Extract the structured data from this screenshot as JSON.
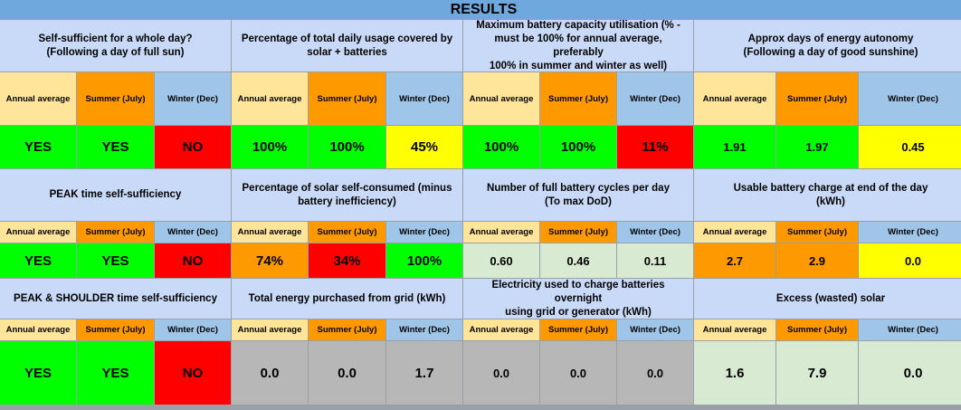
{
  "title": "RESULTS",
  "colors": {
    "header_title": "#6fa8dc",
    "question_bg": "#c9daf8",
    "annual": "#ffe599",
    "summer": "#ff9900",
    "winter": "#9fc5e8",
    "green": "#00ff00",
    "red": "#ff0000",
    "yellow": "#ffff00",
    "orange": "#ff9900",
    "grey": "#b7b7b7",
    "pale_green": "#d9ead3"
  },
  "headers": {
    "annual": "Annual average",
    "summer": "Summer (July)",
    "winter": "Winter (Dec)"
  },
  "sections": [
    {
      "question": "Self-sufficient for a whole day?\n(Following a day of full sun)",
      "values": [
        "YES",
        "YES",
        "NO"
      ],
      "colors": [
        "green",
        "green",
        "red"
      ]
    },
    {
      "question": "Percentage of total daily usage covered by\nsolar + batteries",
      "values": [
        "100%",
        "100%",
        "45%"
      ],
      "colors": [
        "green",
        "green",
        "yellow"
      ]
    },
    {
      "question": "Maximum battery capacity utilisation (% -\nmust be 100% for annual average, preferably\n100% in summer and winter as well)",
      "values": [
        "100%",
        "100%",
        "11%"
      ],
      "colors": [
        "green",
        "green",
        "red"
      ]
    },
    {
      "question": "Approx days of energy autonomy\n(Following a day of good sunshine)",
      "values": [
        "1.91",
        "1.97",
        "0.45"
      ],
      "colors": [
        "green",
        "green",
        "yellow"
      ]
    },
    {
      "question": "PEAK time self-sufficiency",
      "values": [
        "YES",
        "YES",
        "NO"
      ],
      "colors": [
        "green",
        "green",
        "red"
      ]
    },
    {
      "question": "Percentage of solar self-consumed (minus\nbattery inefficiency)",
      "values": [
        "74%",
        "34%",
        "100%"
      ],
      "colors": [
        "orange",
        "red",
        "green"
      ]
    },
    {
      "question": "Number of full battery cycles per day\n(To max DoD)",
      "values": [
        "0.60",
        "0.46",
        "0.11"
      ],
      "colors": [
        "pale_green",
        "pale_green",
        "pale_green"
      ]
    },
    {
      "question": "Usable battery charge at end of the day\n(kWh)",
      "values": [
        "2.7",
        "2.9",
        "0.0"
      ],
      "colors": [
        "orange",
        "orange",
        "yellow"
      ]
    },
    {
      "question": "PEAK & SHOULDER time self-sufficiency",
      "values": [
        "YES",
        "YES",
        "NO"
      ],
      "colors": [
        "green",
        "green",
        "red"
      ]
    },
    {
      "question": "Total energy purchased from grid (kWh)",
      "values": [
        "0.0",
        "0.0",
        "1.7"
      ],
      "colors": [
        "grey",
        "grey",
        "grey"
      ]
    },
    {
      "question": "Electricity used to charge batteries overnight\nusing grid or generator (kWh)",
      "values": [
        "0.0",
        "0.0",
        "0.0"
      ],
      "colors": [
        "grey",
        "grey",
        "grey"
      ]
    },
    {
      "question": "Excess (wasted) solar",
      "values": [
        "1.6",
        "7.9",
        "0.0"
      ],
      "colors": [
        "pale_green",
        "pale_green",
        "pale_green"
      ]
    }
  ]
}
